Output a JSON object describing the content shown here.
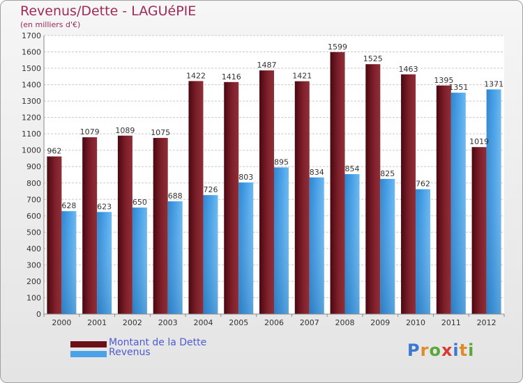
{
  "title": "Revenus/Dette - LAGUéPIE",
  "subtitle": "(en milliers d'€)",
  "logo": {
    "letters": [
      "P",
      "r",
      "o",
      "x",
      "i",
      "t",
      "i"
    ],
    "colors": [
      "#3b78d0",
      "#e08a2a",
      "#5ba83a",
      "#d93a2f",
      "#3b78d0",
      "#e08a2a",
      "#5ba83a"
    ]
  },
  "legend": [
    {
      "label": "Montant de la Dette",
      "color": "#6b0f18"
    },
    {
      "label": "Revenus",
      "color": "#4aa2e8"
    }
  ],
  "chart_data": {
    "type": "bar",
    "title": "Revenus/Dette - LAGUéPIE",
    "ylabel": "(en milliers d'€)",
    "categories": [
      "2000",
      "2001",
      "2002",
      "2003",
      "2004",
      "2005",
      "2006",
      "2007",
      "2008",
      "2009",
      "2010",
      "2011",
      "2012"
    ],
    "series": [
      {
        "name": "Montant de la Dette",
        "color": "#7a1a24",
        "values": [
          962,
          1079,
          1089,
          1075,
          1422,
          1416,
          1487,
          1421,
          1599,
          1525,
          1463,
          1395,
          1019
        ]
      },
      {
        "name": "Revenus",
        "color": "#4aa2e8",
        "values": [
          628,
          623,
          650,
          688,
          726,
          803,
          895,
          834,
          854,
          825,
          762,
          1351,
          1371
        ]
      }
    ],
    "ylim": [
      0,
      1700
    ],
    "yticks": [
      0,
      100,
      200,
      300,
      400,
      500,
      600,
      700,
      800,
      900,
      1000,
      1100,
      1200,
      1300,
      1400,
      1500,
      1600,
      1700
    ],
    "grid": true,
    "legend": "bottom-left"
  }
}
